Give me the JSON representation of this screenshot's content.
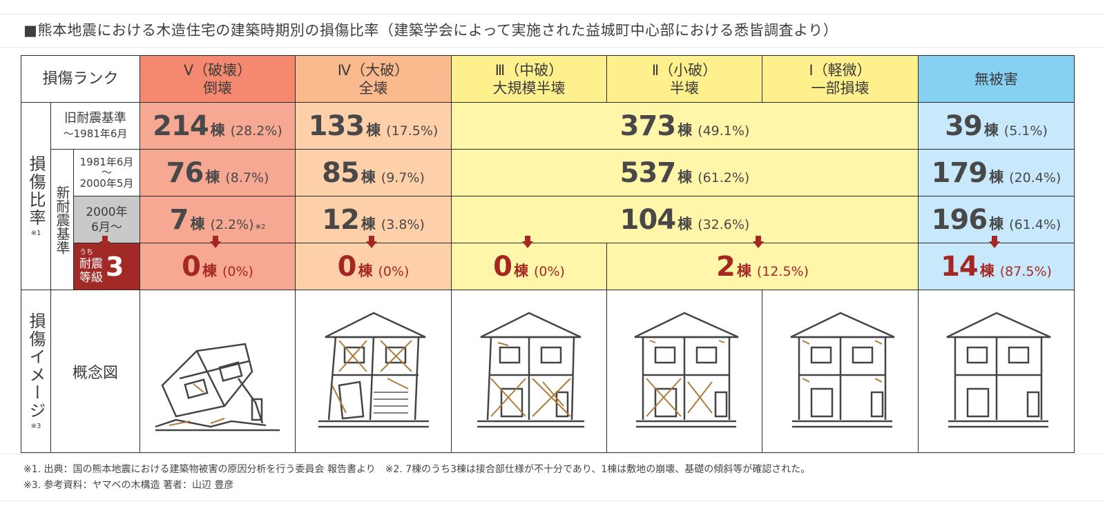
{
  "title": "■熊本地震における木造住宅の建築時期別の損傷比率（建築学会によって実施された益城町中心部における悉皆調査より）",
  "header": {
    "rank_label": "損傷ランク",
    "cols": [
      {
        "line1": "Ⅴ（破壊）",
        "line2": "倒壊"
      },
      {
        "line1": "Ⅳ（大破）",
        "line2": "全壊"
      },
      {
        "line1": "Ⅲ（中破）",
        "line2": "大規模半壊"
      },
      {
        "line1": "Ⅱ（小破）",
        "line2": "半壊"
      },
      {
        "line1": "Ⅰ（軽微）",
        "line2": "一部損壊"
      },
      {
        "line1": "無被害",
        "line2": ""
      }
    ]
  },
  "side": {
    "ratio_label": "損傷比率",
    "ratio_note": "※1",
    "old_std_line1": "旧耐震基準",
    "old_std_line2": "〜1981年6月",
    "new_std_label": "新耐震基準",
    "p2_line1": "1981年6月",
    "p2_line2": "〜",
    "p2_line3": "2000年5月",
    "p3_line1": "2000年",
    "p3_line2": "6月〜",
    "grade_small": "うち",
    "grade_line1": "耐震",
    "grade_line2": "等級",
    "grade_num": "3",
    "image_label": "損傷イメージ",
    "image_note": "※3",
    "concept_label": "概念図"
  },
  "unit": "棟",
  "rows": {
    "old": {
      "v": {
        "n": "214",
        "p": "(28.2%)"
      },
      "iv": {
        "n": "133",
        "p": "(17.5%)"
      },
      "mid": {
        "n": "373",
        "p": "(49.1%)"
      },
      "none": {
        "n": "39",
        "p": "(5.1%)"
      }
    },
    "p2": {
      "v": {
        "n": "76",
        "p": "(8.7%)"
      },
      "iv": {
        "n": "85",
        "p": "(9.7%)"
      },
      "mid": {
        "n": "537",
        "p": "(61.2%)"
      },
      "none": {
        "n": "179",
        "p": "(20.4%)"
      }
    },
    "p3": {
      "v": {
        "n": "7",
        "p": "(2.2%)",
        "note": "※2"
      },
      "iv": {
        "n": "12",
        "p": "(3.8%)"
      },
      "mid": {
        "n": "104",
        "p": "(32.6%)"
      },
      "none": {
        "n": "196",
        "p": "(61.4%)"
      }
    },
    "g3": {
      "v": {
        "n": "0",
        "p": "(0%)"
      },
      "iv": {
        "n": "0",
        "p": "(0%)"
      },
      "iii": {
        "n": "0",
        "p": "(0%)"
      },
      "ii_i": {
        "n": "2",
        "p": "(12.5%)"
      },
      "none": {
        "n": "14",
        "p": "(87.5%)"
      }
    }
  },
  "footnotes": [
    "※1. 出典：国の熊本地震における建築物被害の原因分析を行う委員会 報告書より　※2. 7棟のうち3棟は接合部仕様が不十分であり、1棟は敷地の崩壊、基礎の傾斜等が確認された。",
    "※3. 参考資料：ヤマベの木構造 著者：山辺 豊彦"
  ],
  "colors": {
    "rank_v": "#f5896f",
    "rank_iv": "#fbba8e",
    "rank_mid": "#fef08c",
    "rank_none": "#86d0f3",
    "accent_red": "#a52724"
  },
  "icons": {
    "house_v": "collapsed-house-icon",
    "house_iv": "severely-damaged-house-icon",
    "house_iii": "moderately-damaged-house-icon",
    "house_ii": "slightly-damaged-house-icon",
    "house_i": "lightly-damaged-house-icon",
    "house_none": "undamaged-house-icon"
  }
}
